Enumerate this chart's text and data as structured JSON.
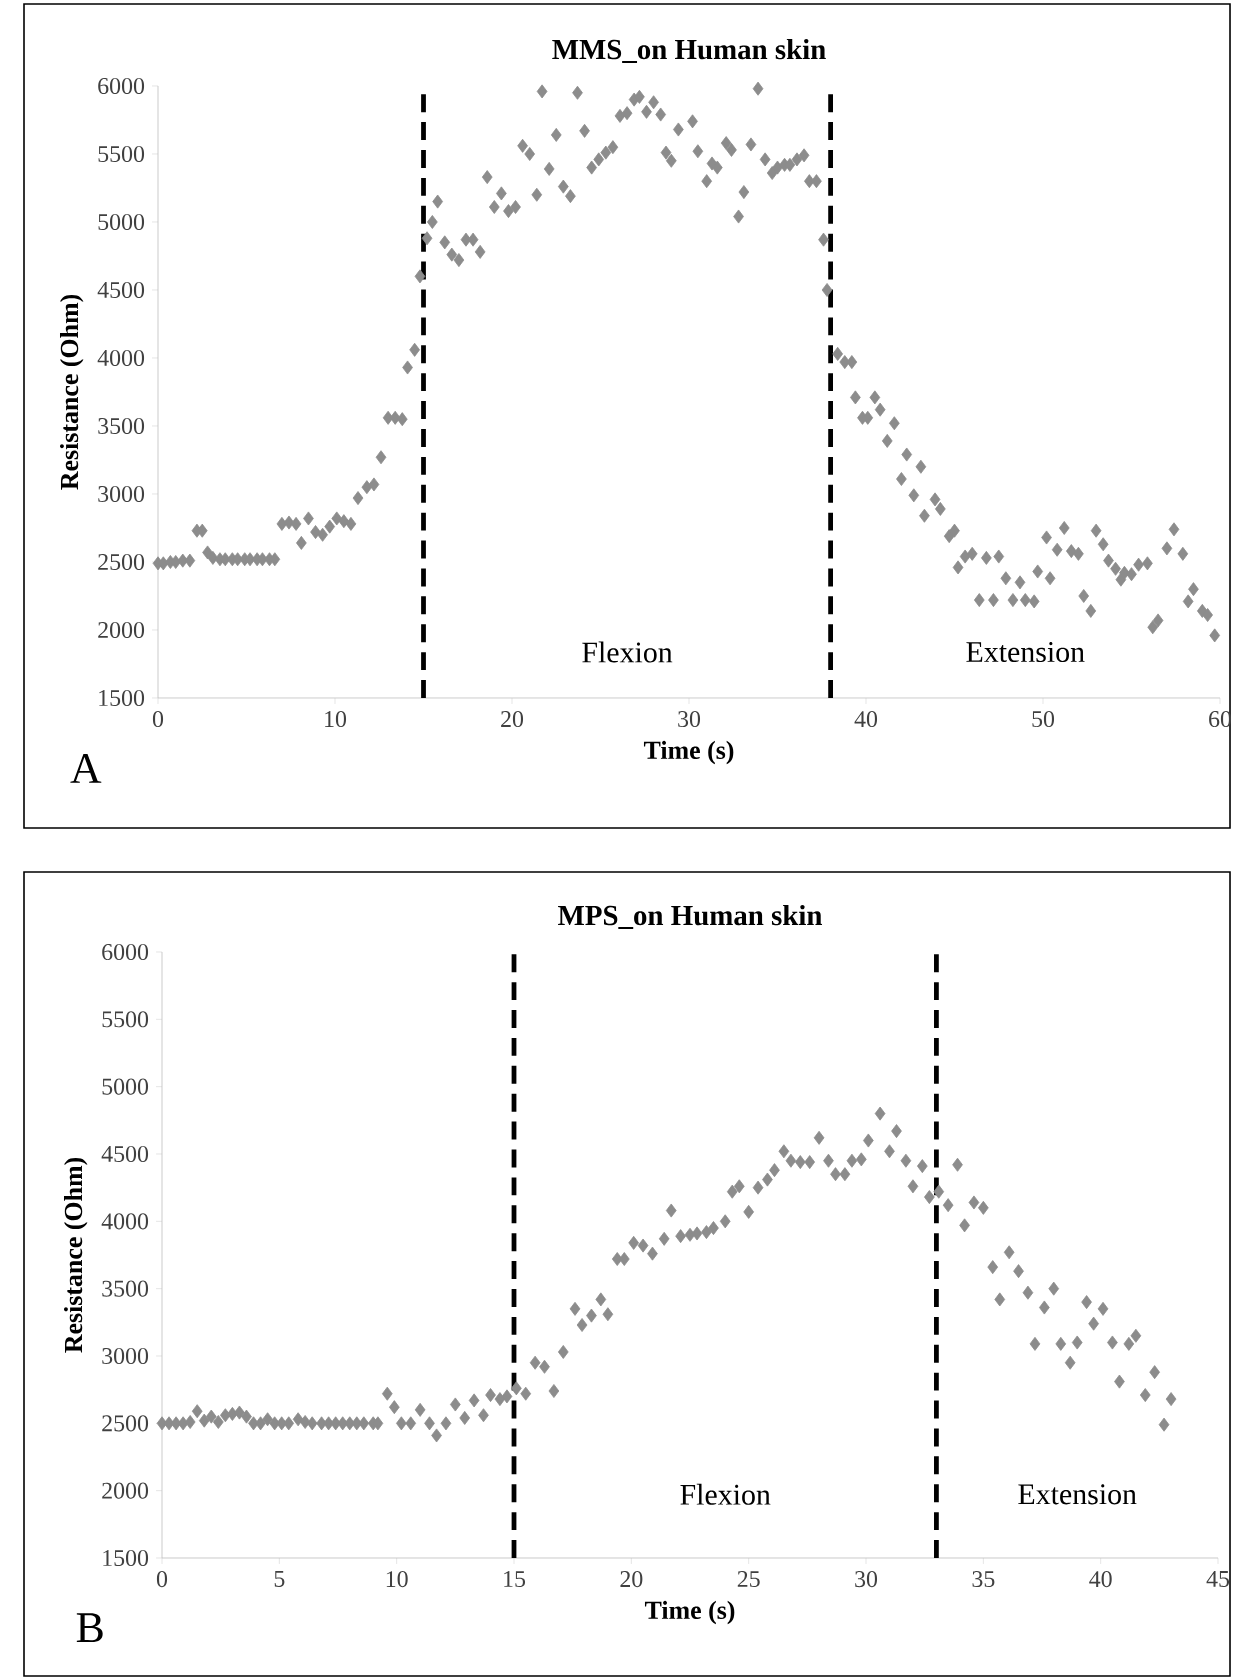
{
  "chart_data": [
    {
      "type": "scatter",
      "title": "MMS_on Human skin",
      "xlabel": "Time (s)",
      "ylabel": "Resistance (Ohm)",
      "color": "#8c8c8c",
      "marker": "diamond",
      "xlim": [
        0,
        60
      ],
      "ylim": [
        1500,
        6000
      ],
      "xticks": [
        0,
        10,
        20,
        30,
        40,
        50,
        60
      ],
      "yticks": [
        1500,
        2000,
        2500,
        3000,
        3500,
        4000,
        4500,
        5000,
        5500,
        6000
      ],
      "x": [
        0,
        0.3,
        0.7,
        1.0,
        1.4,
        1.8,
        2.2,
        2.5,
        2.8,
        3.1,
        3.5,
        3.8,
        4.2,
        4.5,
        4.9,
        5.2,
        5.6,
        5.9,
        6.3,
        6.6,
        7.0,
        7.4,
        7.8,
        8.1,
        8.5,
        8.9,
        9.3,
        9.7,
        10.1,
        10.5,
        10.9,
        11.3,
        11.8,
        12.2,
        12.6,
        13.0,
        13.4,
        13.8,
        14.1,
        14.5,
        14.8,
        15.2,
        15.5,
        15.8,
        16.2,
        16.6,
        17.0,
        17.4,
        17.8,
        18.2,
        18.6,
        19.0,
        19.4,
        19.8,
        20.2,
        20.6,
        21.0,
        21.4,
        21.7,
        22.1,
        22.5,
        22.9,
        23.3,
        23.7,
        24.1,
        24.5,
        24.9,
        25.3,
        25.7,
        26.1,
        26.5,
        26.9,
        27.2,
        27.6,
        28.0,
        28.4,
        28.7,
        29.0,
        29.4,
        30.2,
        30.5,
        31.0,
        31.3,
        31.6,
        32.1,
        32.4,
        32.8,
        33.1,
        33.5,
        33.9,
        34.3,
        34.7,
        35.0,
        35.4,
        35.7,
        36.1,
        36.5,
        36.8,
        37.2,
        37.6,
        37.8,
        38.4,
        38.8,
        39.2,
        39.4,
        39.8,
        40.1,
        40.5,
        40.8,
        41.2,
        41.6,
        42.0,
        42.3,
        42.7,
        43.1,
        43.3,
        43.9,
        44.2,
        44.7,
        45.0,
        45.2,
        45.6,
        46.0,
        46.4,
        46.8,
        47.2,
        47.5,
        47.9,
        48.3,
        48.7,
        49.0,
        49.5,
        49.7,
        50.2,
        50.4,
        50.8,
        51.2,
        51.6,
        52.0,
        52.3,
        52.7,
        53.0,
        53.4,
        53.7,
        54.1,
        54.4,
        54.6,
        55.0,
        55.4,
        55.9,
        56.2,
        56.5,
        57.0,
        57.4,
        57.9,
        58.2,
        58.5,
        59.0,
        59.3,
        59.7
      ],
      "values": [
        2490,
        2490,
        2500,
        2500,
        2510,
        2510,
        2730,
        2730,
        2570,
        2530,
        2520,
        2520,
        2520,
        2520,
        2520,
        2520,
        2520,
        2520,
        2520,
        2520,
        2780,
        2790,
        2780,
        2640,
        2820,
        2720,
        2700,
        2760,
        2820,
        2800,
        2780,
        2970,
        3050,
        3070,
        3270,
        3560,
        3560,
        3550,
        3930,
        4060,
        4600,
        4880,
        5000,
        5150,
        4850,
        4760,
        4720,
        4870,
        4870,
        4780,
        5330,
        5110,
        5210,
        5080,
        5110,
        5560,
        5500,
        5200,
        5960,
        5390,
        5640,
        5260,
        5190,
        5950,
        5670,
        5400,
        5460,
        5510,
        5550,
        5780,
        5800,
        5900,
        5920,
        5810,
        5880,
        5790,
        5510,
        5450,
        5680,
        5740,
        5520,
        5300,
        5430,
        5400,
        5580,
        5530,
        5040,
        5220,
        5570,
        5980,
        5460,
        5360,
        5400,
        5420,
        5420,
        5460,
        5490,
        5300,
        5300,
        4870,
        4500,
        4030,
        3970,
        3970,
        3710,
        3560,
        3560,
        3710,
        3620,
        3390,
        3520,
        3110,
        3290,
        2990,
        3200,
        2840,
        2960,
        2890,
        2690,
        2730,
        2460,
        2540,
        2560,
        2220,
        2530,
        2220,
        2540,
        2380,
        2220,
        2350,
        2220,
        2210,
        2430,
        2680,
        2380,
        2590,
        2750,
        2580,
        2560,
        2250,
        2140,
        2730,
        2630,
        2510,
        2450,
        2370,
        2420,
        2410,
        2480,
        2490,
        2020,
        2070,
        2600,
        2740,
        2560,
        2210,
        2300,
        2140,
        2110,
        1960
      ],
      "ref_lines": [
        {
          "axis": "x",
          "value": 15,
          "color": "#000000",
          "line_style": "dashed"
        },
        {
          "axis": "x",
          "value": 38,
          "color": "#000000",
          "line_style": "dashed"
        }
      ],
      "annotations": [
        "Flexion",
        "Extension",
        "A"
      ]
    },
    {
      "type": "scatter",
      "title": "MPS_on Human skin",
      "xlabel": "Time (s)",
      "ylabel": "Resistance (Ohm)",
      "color": "#8c8c8c",
      "marker": "diamond",
      "xlim": [
        0,
        45
      ],
      "ylim": [
        1500,
        6000
      ],
      "xticks": [
        0,
        5,
        10,
        15,
        20,
        25,
        30,
        35,
        40,
        45
      ],
      "yticks": [
        1500,
        2000,
        2500,
        3000,
        3500,
        4000,
        4500,
        5000,
        5500,
        6000
      ],
      "x": [
        0,
        0.3,
        0.6,
        0.9,
        1.2,
        1.5,
        1.8,
        2.1,
        2.4,
        2.7,
        3.0,
        3.3,
        3.6,
        3.9,
        4.2,
        4.5,
        4.8,
        5.1,
        5.4,
        5.8,
        6.1,
        6.4,
        6.8,
        7.1,
        7.4,
        7.7,
        8.0,
        8.3,
        8.6,
        9.0,
        9.2,
        9.6,
        9.9,
        10.2,
        10.6,
        11.0,
        11.4,
        11.7,
        12.1,
        12.5,
        12.9,
        13.3,
        13.7,
        14.0,
        14.4,
        14.7,
        15.1,
        15.5,
        15.9,
        16.3,
        16.7,
        17.1,
        17.6,
        17.9,
        18.3,
        18.7,
        19.0,
        19.4,
        19.7,
        20.1,
        20.5,
        20.9,
        21.4,
        21.7,
        22.1,
        22.5,
        22.8,
        23.2,
        23.5,
        24.0,
        24.3,
        24.6,
        25.0,
        25.4,
        25.8,
        26.1,
        26.5,
        26.8,
        27.2,
        27.6,
        28.0,
        28.4,
        28.7,
        29.1,
        29.4,
        29.8,
        30.1,
        30.6,
        31.0,
        31.3,
        31.7,
        32.0,
        32.4,
        32.7,
        33.1,
        33.5,
        33.9,
        34.2,
        34.6,
        35.0,
        35.4,
        35.7,
        36.1,
        36.5,
        36.9,
        37.2,
        37.6,
        38.0,
        38.3,
        38.7,
        39.0,
        39.4,
        39.7,
        40.1,
        40.5,
        40.8,
        41.2,
        41.5,
        41.9,
        42.3,
        42.7,
        43.0
      ],
      "values": [
        2500,
        2500,
        2500,
        2500,
        2510,
        2590,
        2520,
        2550,
        2510,
        2560,
        2570,
        2580,
        2550,
        2500,
        2500,
        2530,
        2500,
        2500,
        2500,
        2530,
        2510,
        2500,
        2500,
        2500,
        2500,
        2500,
        2500,
        2500,
        2500,
        2500,
        2500,
        2720,
        2620,
        2500,
        2500,
        2600,
        2500,
        2410,
        2500,
        2640,
        2540,
        2670,
        2560,
        2710,
        2680,
        2700,
        2760,
        2720,
        2950,
        2920,
        2740,
        3030,
        3350,
        3230,
        3300,
        3420,
        3310,
        3720,
        3720,
        3840,
        3820,
        3760,
        3870,
        4080,
        3890,
        3900,
        3910,
        3920,
        3950,
        4000,
        4220,
        4260,
        4070,
        4250,
        4310,
        4380,
        4520,
        4450,
        4440,
        4440,
        4620,
        4450,
        4350,
        4350,
        4450,
        4460,
        4600,
        4800,
        4520,
        4670,
        4450,
        4260,
        4410,
        4180,
        4220,
        4120,
        4420,
        3970,
        4140,
        4100,
        3660,
        3420,
        3770,
        3630,
        3470,
        3090,
        3360,
        3500,
        3090,
        2950,
        3100,
        3400,
        3240,
        3350,
        3100,
        2810,
        3090,
        3150,
        2710,
        2880,
        2490,
        2680
      ],
      "ref_lines": [
        {
          "axis": "x",
          "value": 15,
          "color": "#000000",
          "line_style": "dashed"
        },
        {
          "axis": "x",
          "value": 33,
          "color": "#000000",
          "line_style": "dashed"
        }
      ],
      "annotations": [
        "Flexion",
        "Extension",
        "B"
      ]
    }
  ]
}
